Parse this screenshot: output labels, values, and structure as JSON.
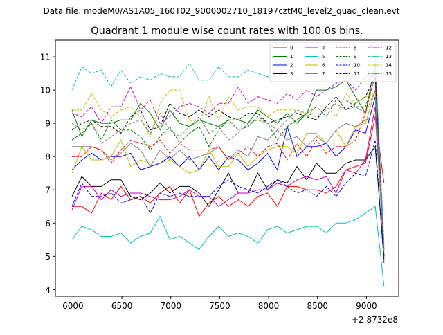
{
  "suptitle": "Data file: modeM0/AS1A05_160T02_9000002710_18197cztM0_level2_quad_clean.evt",
  "chart_data": {
    "type": "line",
    "title": "Quadrant 1 module wise count rates with 100.0s bins.",
    "xlabel": "",
    "ylabel": "",
    "x_offset_label": "+2.8732e8",
    "xlim": [
      5820,
      9330
    ],
    "ylim": [
      3.8,
      11.5
    ],
    "xticks": [
      6000,
      6500,
      7000,
      7500,
      8000,
      8500,
      9000
    ],
    "yticks": [
      4,
      5,
      6,
      7,
      8,
      9,
      10,
      11
    ],
    "grid": false,
    "legend_position": "top-right",
    "x": [
      5990,
      6090,
      6190,
      6290,
      6390,
      6490,
      6590,
      6690,
      6790,
      6890,
      6990,
      7090,
      7190,
      7290,
      7390,
      7490,
      7590,
      7690,
      7790,
      7890,
      7990,
      8090,
      8190,
      8290,
      8390,
      8490,
      8590,
      8690,
      8790,
      8890,
      8990,
      9090,
      9180
    ],
    "series": [
      {
        "name": "0",
        "color": "#ff0000",
        "dash": "solid",
        "values": [
          6.5,
          6.5,
          6.3,
          6.9,
          6.7,
          7.1,
          6.7,
          6.8,
          6.6,
          6.9,
          7.1,
          6.6,
          7.0,
          6.2,
          6.6,
          6.8,
          6.5,
          6.7,
          6.5,
          6.8,
          6.9,
          6.5,
          7.1,
          7.1,
          7.0,
          7.0,
          6.9,
          7.1,
          7.6,
          7.7,
          7.8,
          9.2,
          7.2
        ]
      },
      {
        "name": "1",
        "color": "#008000",
        "dash": "solid",
        "values": [
          9.4,
          8.6,
          9.1,
          9.0,
          9.0,
          9.1,
          9.1,
          9.6,
          9.3,
          8.8,
          9.4,
          9.0,
          8.9,
          9.1,
          9.0,
          8.9,
          9.1,
          9.1,
          9.0,
          9.4,
          9.2,
          9.0,
          9.3,
          9.0,
          9.3,
          10.0,
          10.0,
          10.1,
          10.3,
          9.8,
          9.3,
          10.8,
          5.2
        ]
      },
      {
        "name": "2",
        "color": "#0000ff",
        "dash": "solid",
        "values": [
          7.6,
          7.9,
          8.1,
          7.9,
          8.0,
          8.0,
          8.1,
          7.6,
          7.7,
          7.8,
          8.0,
          7.7,
          8.0,
          7.6,
          8.0,
          7.6,
          8.0,
          7.9,
          7.6,
          7.8,
          8.1,
          7.6,
          8.9,
          8.0,
          8.3,
          8.3,
          8.4,
          8.0,
          8.3,
          8.8,
          8.7,
          9.8,
          5.0
        ]
      },
      {
        "name": "3",
        "color": "#000000",
        "dash": "solid",
        "values": [
          6.8,
          7.4,
          7.1,
          7.1,
          7.3,
          7.3,
          6.8,
          6.7,
          6.9,
          7.2,
          6.9,
          7.1,
          7.1,
          6.9,
          6.5,
          7.0,
          7.5,
          6.9,
          6.9,
          7.5,
          7.0,
          7.3,
          7.2,
          7.7,
          7.3,
          7.8,
          7.5,
          7.5,
          7.8,
          7.9,
          7.9,
          8.3,
          4.9
        ]
      },
      {
        "name": "4",
        "color": "#bf00bf",
        "dash": "solid",
        "values": [
          6.4,
          7.1,
          7.1,
          6.7,
          7.0,
          6.8,
          6.9,
          6.9,
          6.8,
          6.7,
          6.7,
          6.8,
          7.0,
          6.8,
          6.8,
          6.5,
          6.7,
          6.9,
          6.9,
          7.0,
          7.0,
          7.2,
          7.1,
          7.3,
          7.4,
          7.3,
          7.4,
          6.9,
          7.6,
          7.5,
          7.9,
          9.5,
          5.0
        ]
      },
      {
        "name": "5",
        "color": "#00bfbf",
        "dash": "solid",
        "values": [
          5.5,
          5.9,
          5.8,
          5.6,
          5.6,
          5.7,
          5.4,
          5.6,
          5.7,
          6.2,
          5.5,
          5.6,
          5.4,
          5.2,
          5.6,
          5.9,
          5.6,
          5.7,
          5.6,
          5.4,
          5.8,
          5.9,
          5.7,
          5.8,
          5.9,
          5.9,
          5.7,
          6.0,
          6.0,
          6.1,
          6.3,
          6.5,
          4.1
        ]
      },
      {
        "name": "6",
        "color": "#bfbf00",
        "dash": "solid",
        "values": [
          7.5,
          8.3,
          7.9,
          7.9,
          8.0,
          8.5,
          7.7,
          7.9,
          7.8,
          7.8,
          7.9,
          7.7,
          7.5,
          7.6,
          8.2,
          7.7,
          7.7,
          8.1,
          7.7,
          8.0,
          8.2,
          8.3,
          8.3,
          8.1,
          8.7,
          8.7,
          8.4,
          8.8,
          8.3,
          8.9,
          9.0,
          10.0,
          5.2
        ]
      },
      {
        "name": "7",
        "color": "#808080",
        "dash": "solid",
        "values": [
          8.3,
          8.3,
          8.3,
          8.2,
          7.9,
          8.1,
          8.4,
          8.2,
          7.7,
          8.2,
          7.9,
          8.2,
          7.9,
          8.0,
          8.1,
          8.3,
          7.9,
          8.2,
          8.0,
          8.6,
          8.5,
          8.8,
          8.5,
          8.6,
          8.3,
          8.6,
          8.4,
          8.8,
          9.0,
          8.9,
          9.1,
          9.2,
          5.2
        ]
      },
      {
        "name": "8",
        "color": "#ff0000",
        "dash": "dashed",
        "values": [
          8.0,
          8.0,
          8.3,
          8.2,
          7.8,
          8.2,
          8.5,
          8.4,
          8.3,
          8.5,
          8.1,
          8.4,
          8.2,
          8.2,
          8.2,
          8.3,
          7.9,
          8.1,
          8.3,
          8.0,
          8.3,
          8.4,
          7.9,
          8.4,
          8.0,
          8.5,
          8.1,
          8.3,
          8.3,
          8.5,
          9.3,
          10.5,
          4.9
        ]
      },
      {
        "name": "9",
        "color": "#008000",
        "dash": "dashed",
        "values": [
          8.5,
          8.7,
          9.0,
          8.5,
          9.1,
          8.8,
          8.8,
          8.6,
          8.2,
          8.6,
          8.9,
          8.4,
          8.7,
          8.9,
          8.3,
          8.8,
          9.1,
          8.8,
          8.9,
          9.2,
          9.0,
          8.5,
          8.9,
          9.1,
          9.3,
          9.5,
          9.2,
          9.7,
          9.7,
          9.5,
          9.5,
          10.4,
          5.0
        ]
      },
      {
        "name": "10",
        "color": "#0000ff",
        "dash": "dashed",
        "values": [
          6.5,
          7.2,
          6.8,
          6.8,
          6.9,
          6.6,
          6.7,
          6.8,
          6.3,
          6.9,
          6.8,
          6.9,
          6.8,
          6.8,
          6.8,
          7.1,
          7.3,
          7.1,
          7.0,
          6.9,
          7.1,
          7.3,
          7.1,
          6.9,
          7.0,
          6.8,
          7.1,
          6.8,
          7.2,
          7.5,
          7.4,
          8.5,
          4.8
        ]
      },
      {
        "name": "11",
        "color": "#000000",
        "dash": "dashed",
        "values": [
          8.8,
          9.0,
          9.1,
          8.9,
          8.9,
          8.7,
          9.2,
          9.4,
          8.8,
          8.9,
          9.6,
          9.3,
          9.2,
          9.4,
          9.2,
          9.4,
          9.2,
          9.1,
          9.3,
          9.3,
          9.0,
          9.1,
          9.2,
          9.3,
          9.2,
          9.1,
          9.5,
          9.8,
          9.4,
          9.6,
          9.8,
          10.4,
          5.0
        ]
      },
      {
        "name": "12",
        "color": "#bf00bf",
        "dash": "dashed",
        "values": [
          9.3,
          9.2,
          9.5,
          9.0,
          9.5,
          9.5,
          10.1,
          9.4,
          9.7,
          9.0,
          9.2,
          9.5,
          9.6,
          9.5,
          9.3,
          9.6,
          9.6,
          10.1,
          9.6,
          9.8,
          9.7,
          9.6,
          9.9,
          9.7,
          10.0,
          9.8,
          10.0,
          10.2,
          10.3,
          10.0,
          10.4,
          10.2,
          5.3
        ]
      },
      {
        "name": "13",
        "color": "#00bfbf",
        "dash": "dashed",
        "values": [
          10.0,
          10.7,
          10.5,
          10.6,
          10.1,
          10.6,
          10.2,
          10.4,
          10.3,
          10.5,
          10.4,
          10.4,
          10.8,
          10.3,
          10.3,
          10.7,
          10.4,
          10.4,
          10.6,
          10.5,
          10.4,
          10.4,
          10.9,
          10.3,
          10.6,
          10.7,
          10.8,
          10.6,
          10.9,
          10.7,
          10.8,
          11.0,
          5.4
        ]
      },
      {
        "name": "14",
        "color": "#bfbf00",
        "dash": "dashed",
        "values": [
          9.4,
          9.4,
          9.9,
          9.4,
          9.2,
          9.4,
          9.5,
          9.2,
          8.6,
          9.6,
          10.0,
          10.0,
          9.1,
          9.0,
          9.8,
          9.1,
          9.8,
          9.4,
          9.5,
          9.5,
          9.2,
          9.4,
          9.4,
          9.4,
          9.2,
          9.5,
          9.5,
          9.2,
          9.9,
          9.6,
          9.8,
          9.9,
          5.1
        ]
      },
      {
        "name": "15",
        "color": "#808080",
        "dash": "dashed",
        "values": [
          9.0,
          8.8,
          9.0,
          8.4,
          8.6,
          8.8,
          9.0,
          9.1,
          8.7,
          9.3,
          8.8,
          8.6,
          8.9,
          9.2,
          8.7,
          8.9,
          8.5,
          8.7,
          9.0,
          9.1,
          9.0,
          8.8,
          9.1,
          9.4,
          9.3,
          9.2,
          9.4,
          9.6,
          9.4,
          9.5,
          9.3,
          10.0,
          5.2
        ]
      }
    ]
  }
}
